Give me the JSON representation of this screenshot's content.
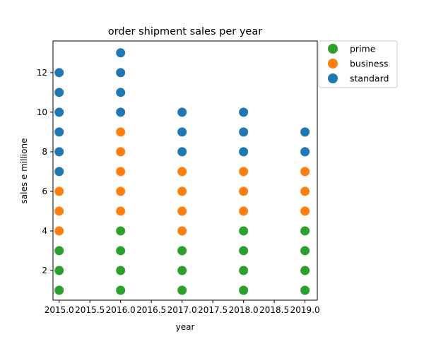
{
  "chart_data": {
    "type": "scatter",
    "title": "order shipment sales per year",
    "xlabel": "year",
    "ylabel": "sales e millione",
    "xlim": [
      2014.9,
      2019.2
    ],
    "ylim": [
      0.5,
      13.6
    ],
    "xticks": [
      2015.0,
      2015.5,
      2016.0,
      2016.5,
      2017.0,
      2017.5,
      2018.0,
      2018.5,
      2019.0
    ],
    "xtick_labels": [
      "2015.0",
      "2015.5",
      "2016.0",
      "2016.5",
      "2017.0",
      "2017.5",
      "2018.0",
      "2018.5",
      "2019.0"
    ],
    "yticks": [
      2,
      4,
      6,
      8,
      10,
      12
    ],
    "ytick_labels": [
      "2",
      "4",
      "6",
      "8",
      "10",
      "12"
    ],
    "grid": false,
    "legend_position": "outside-top-right",
    "series": [
      {
        "name": "prime",
        "color": "#2ca02c",
        "points": [
          [
            2015,
            1
          ],
          [
            2015,
            2
          ],
          [
            2015,
            3
          ],
          [
            2016,
            1
          ],
          [
            2016,
            2
          ],
          [
            2016,
            3
          ],
          [
            2016,
            4
          ],
          [
            2017,
            1
          ],
          [
            2017,
            2
          ],
          [
            2017,
            3
          ],
          [
            2018,
            1
          ],
          [
            2018,
            2
          ],
          [
            2018,
            3
          ],
          [
            2018,
            4
          ],
          [
            2019,
            1
          ],
          [
            2019,
            2
          ],
          [
            2019,
            3
          ],
          [
            2019,
            4
          ]
        ]
      },
      {
        "name": "business",
        "color": "#ff7f0e",
        "points": [
          [
            2015,
            4
          ],
          [
            2015,
            5
          ],
          [
            2015,
            6
          ],
          [
            2016,
            5
          ],
          [
            2016,
            6
          ],
          [
            2016,
            7
          ],
          [
            2016,
            8
          ],
          [
            2016,
            9
          ],
          [
            2017,
            4
          ],
          [
            2017,
            5
          ],
          [
            2017,
            6
          ],
          [
            2017,
            7
          ],
          [
            2018,
            5
          ],
          [
            2018,
            6
          ],
          [
            2018,
            7
          ],
          [
            2019,
            5
          ],
          [
            2019,
            6
          ],
          [
            2019,
            7
          ]
        ]
      },
      {
        "name": "standard",
        "color": "#1f77b4",
        "points": [
          [
            2015,
            7
          ],
          [
            2015,
            8
          ],
          [
            2015,
            9
          ],
          [
            2015,
            10
          ],
          [
            2015,
            11
          ],
          [
            2015,
            12
          ],
          [
            2016,
            10
          ],
          [
            2016,
            11
          ],
          [
            2016,
            12
          ],
          [
            2016,
            13
          ],
          [
            2017,
            8
          ],
          [
            2017,
            9
          ],
          [
            2017,
            10
          ],
          [
            2018,
            8
          ],
          [
            2018,
            9
          ],
          [
            2018,
            10
          ],
          [
            2019,
            8
          ],
          [
            2019,
            9
          ]
        ]
      }
    ],
    "legend_order": [
      "prime",
      "business",
      "standard"
    ]
  }
}
